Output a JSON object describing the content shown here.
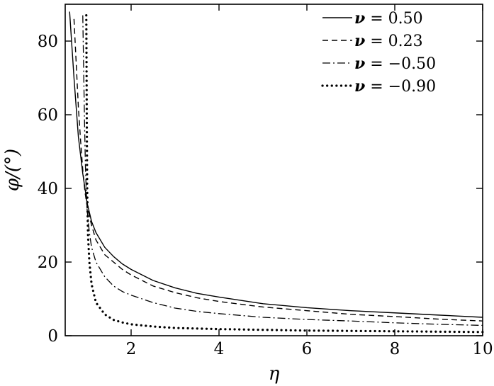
{
  "chart_data": {
    "type": "line",
    "xlabel": "η",
    "ylabel": "φ/(°)",
    "xlim": [
      0.5,
      10
    ],
    "ylim": [
      0,
      90
    ],
    "xticks": [
      2,
      4,
      6,
      8,
      10
    ],
    "yticks": [
      0,
      20,
      40,
      60,
      80
    ],
    "legend_position": "top-right",
    "grid": false,
    "series": [
      {
        "name": "ν = 0.50",
        "legend_symbol": "ν",
        "legend_value": " = 0.50",
        "style": "solid",
        "x": [
          0.6,
          0.65,
          0.7,
          0.8,
          0.9,
          1.0,
          1.1,
          1.2,
          1.4,
          1.6,
          1.8,
          2.0,
          2.5,
          3.0,
          3.5,
          4.0,
          5.0,
          6.0,
          7.0,
          8.0,
          9.0,
          10.0
        ],
        "y": [
          88.0,
          79.0,
          70.0,
          54.0,
          44.0,
          36.0,
          31.0,
          28.0,
          24.0,
          21.5,
          19.5,
          18.0,
          15.0,
          13.0,
          11.5,
          10.5,
          8.7,
          7.6,
          6.8,
          6.2,
          5.6,
          5.0
        ]
      },
      {
        "name": "ν = 0.23",
        "legend_symbol": "ν",
        "legend_value": " = 0.23",
        "style": "dashed",
        "x": [
          0.7,
          0.75,
          0.8,
          0.85,
          0.9,
          0.95,
          1.0,
          1.1,
          1.2,
          1.4,
          1.6,
          1.8,
          2.0,
          2.5,
          3.0,
          3.5,
          4.0,
          5.0,
          6.0,
          7.0,
          8.0,
          9.0,
          10.0
        ],
        "y": [
          86.0,
          74.0,
          62.0,
          53.0,
          45.0,
          39.0,
          35.0,
          30.0,
          26.0,
          22.0,
          20.0,
          18.0,
          16.5,
          13.5,
          11.7,
          10.3,
          9.3,
          7.8,
          6.8,
          5.8,
          5.2,
          4.5,
          4.0
        ]
      },
      {
        "name": "ν = −0.50",
        "legend_symbol": "ν",
        "legend_value": " = −0.50",
        "style": "dashdot",
        "x": [
          0.9,
          0.92,
          0.94,
          0.96,
          0.98,
          1.0,
          1.05,
          1.1,
          1.2,
          1.4,
          1.6,
          1.8,
          2.0,
          2.5,
          3.0,
          3.5,
          4.0,
          5.0,
          6.0,
          7.0,
          8.0,
          9.0,
          10.0
        ],
        "y": [
          87.0,
          72.0,
          58.0,
          46.0,
          39.0,
          34.0,
          28.0,
          24.0,
          20.0,
          16.0,
          13.5,
          12.0,
          11.0,
          9.0,
          7.5,
          6.6,
          6.0,
          5.0,
          4.4,
          4.0,
          3.5,
          3.1,
          2.8
        ]
      },
      {
        "name": "ν = −0.90",
        "legend_symbol": "ν",
        "legend_value": " = −0.90",
        "style": "dotted",
        "x": [
          0.98,
          0.985,
          0.99,
          0.995,
          1.0,
          1.01,
          1.02,
          1.05,
          1.1,
          1.2,
          1.4,
          1.6,
          1.8,
          2.0,
          2.5,
          3.0,
          4.0,
          5.0,
          6.0,
          7.0,
          8.0,
          9.0,
          10.0
        ],
        "y": [
          87.0,
          75.0,
          62.0,
          50.0,
          40.0,
          33.0,
          27.0,
          20.0,
          14.0,
          9.0,
          5.8,
          4.3,
          3.6,
          3.1,
          2.5,
          2.1,
          1.8,
          1.6,
          1.4,
          1.3,
          1.2,
          1.1,
          1.0
        ]
      }
    ]
  }
}
